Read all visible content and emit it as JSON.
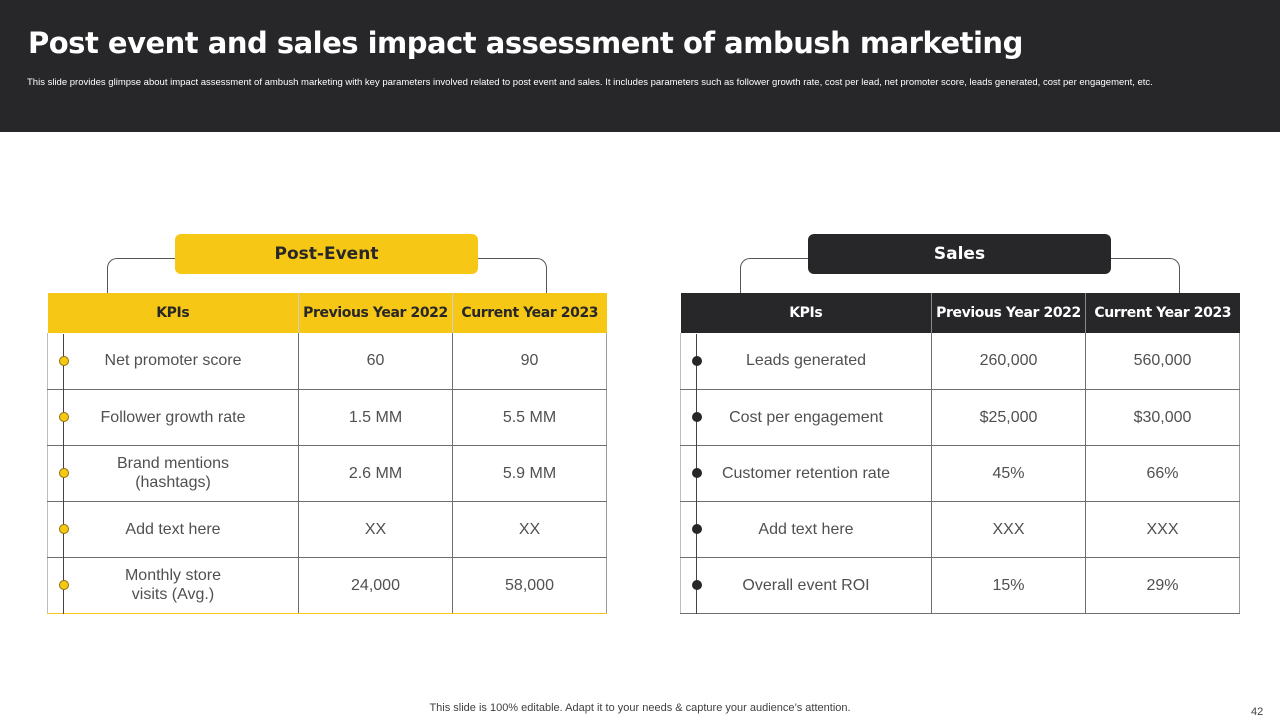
{
  "header": {
    "title": "Post event and sales impact assessment  of ambush marketing",
    "subtitle": "This slide provides glimpse about impact assessment of ambush marketing  with key parameters involved related to post event and sales. It includes parameters such as follower growth rate, cost per lead, net promoter score, leads generated, cost per engagement,  etc."
  },
  "post_event": {
    "heading": "Post-Event",
    "columns": [
      "KPIs",
      "Previous Year 2022",
      "Current Year 2023"
    ],
    "rows": [
      {
        "kpi": "Net promoter score",
        "prev": "60",
        "cur": "90"
      },
      {
        "kpi": "Follower growth rate",
        "prev": "1.5 MM",
        "cur": "5.5 MM"
      },
      {
        "kpi": "Brand mentions (hashtags)",
        "prev": "2.6 MM",
        "cur": "5.9 MM"
      },
      {
        "kpi": "Add text here",
        "prev": "XX",
        "cur": "XX"
      },
      {
        "kpi": "Monthly store visits (Avg.)",
        "prev": "24,000",
        "cur": "58,000"
      }
    ]
  },
  "sales": {
    "heading": "Sales",
    "columns": [
      "KPIs",
      "Previous Year 2022",
      "Current Year 2023"
    ],
    "rows": [
      {
        "kpi": "Leads generated",
        "prev": "260,000",
        "cur": "560,000"
      },
      {
        "kpi": "Cost per engagement",
        "prev": "$25,000",
        "cur": "$30,000"
      },
      {
        "kpi": "Customer retention rate",
        "prev": "45%",
        "cur": "66%"
      },
      {
        "kpi": "Add text here",
        "prev": "XXX",
        "cur": "XXX"
      },
      {
        "kpi": "Overall event ROI",
        "prev": "15%",
        "cur": "29%"
      }
    ]
  },
  "footer": {
    "note": "This slide is 100% editable. Adapt it to your needs & capture your audience’s attention.",
    "page": "42"
  },
  "colors": {
    "accent": "#f6c714",
    "dark": "#27272a"
  }
}
